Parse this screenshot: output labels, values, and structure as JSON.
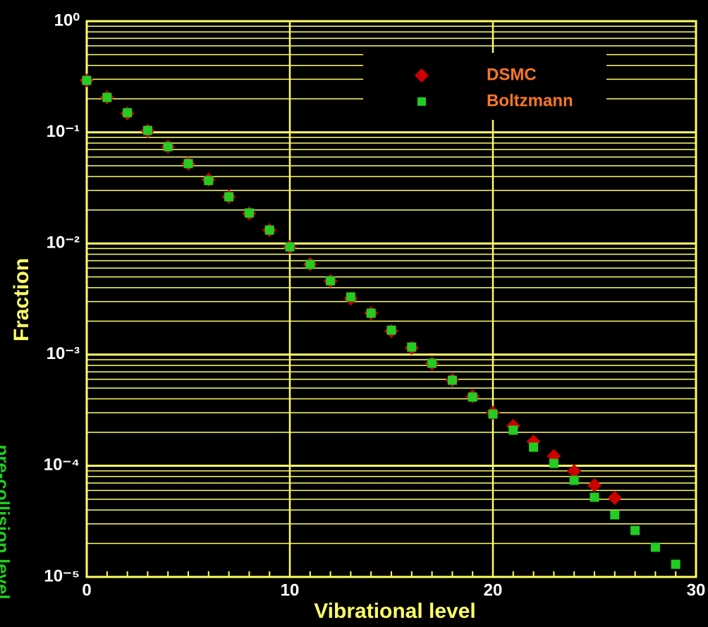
{
  "chart_data": {
    "type": "scatter",
    "title": null,
    "xlabel": "Vibrational level",
    "ylabel": "Fraction",
    "annotation": "pre-collision level",
    "log_y": true,
    "grid": true,
    "legend": "upper right",
    "xlim": [
      0,
      30
    ],
    "xticks": [
      0,
      10,
      20,
      30
    ],
    "ylim": [
      1e-05,
      1
    ],
    "yticks": [
      {
        "value": 1,
        "label": "10⁰"
      },
      {
        "value": 0.1,
        "label": "10⁻¹"
      },
      {
        "value": 0.01,
        "label": "10⁻²"
      },
      {
        "value": 0.001,
        "label": "10⁻³"
      },
      {
        "value": 0.0001,
        "label": "10⁻⁴"
      },
      {
        "value": 1e-05,
        "label": "10⁻⁵"
      }
    ],
    "series": [
      {
        "name": "DSMC",
        "color": "#cc0000",
        "marker": "diamond",
        "x": [
          0,
          1,
          2,
          3,
          4,
          5,
          6,
          7,
          8,
          9,
          10,
          11,
          12,
          13,
          14,
          15,
          16,
          17,
          18,
          19,
          20,
          21,
          22,
          23,
          24,
          25,
          26
        ],
        "values": [
          0.293,
          0.206,
          0.148,
          0.103,
          0.0743,
          0.0523,
          0.0375,
          0.0263,
          0.0186,
          0.0132,
          0.0093,
          0.0065,
          0.0046,
          0.0032,
          0.00236,
          0.00163,
          0.00115,
          0.00083,
          0.00059,
          0.00042,
          0.0003,
          0.000228,
          0.000165,
          0.000122,
          8.95e-05,
          6.68e-05,
          5.14e-05
        ]
      },
      {
        "name": "Boltzmann",
        "color": "#22cc22",
        "marker": "square",
        "x": [
          0,
          1,
          2,
          3,
          4,
          5,
          6,
          7,
          8,
          9,
          10,
          11,
          12,
          13,
          14,
          15,
          16,
          17,
          18,
          19,
          20,
          21,
          22,
          23,
          24,
          25,
          26,
          27,
          28,
          29
        ],
        "values": [
          0.293,
          0.206,
          0.15,
          0.104,
          0.0743,
          0.0523,
          0.0368,
          0.0263,
          0.0188,
          0.0132,
          0.00933,
          0.00648,
          0.00462,
          0.0033,
          0.00236,
          0.00166,
          0.00117,
          0.000837,
          0.000589,
          0.000415,
          0.000292,
          0.000209,
          0.000147,
          0.000105,
          7.4e-05,
          5.21e-05,
          3.62e-05,
          2.62e-05,
          1.85e-05,
          1.3e-05
        ]
      }
    ]
  }
}
